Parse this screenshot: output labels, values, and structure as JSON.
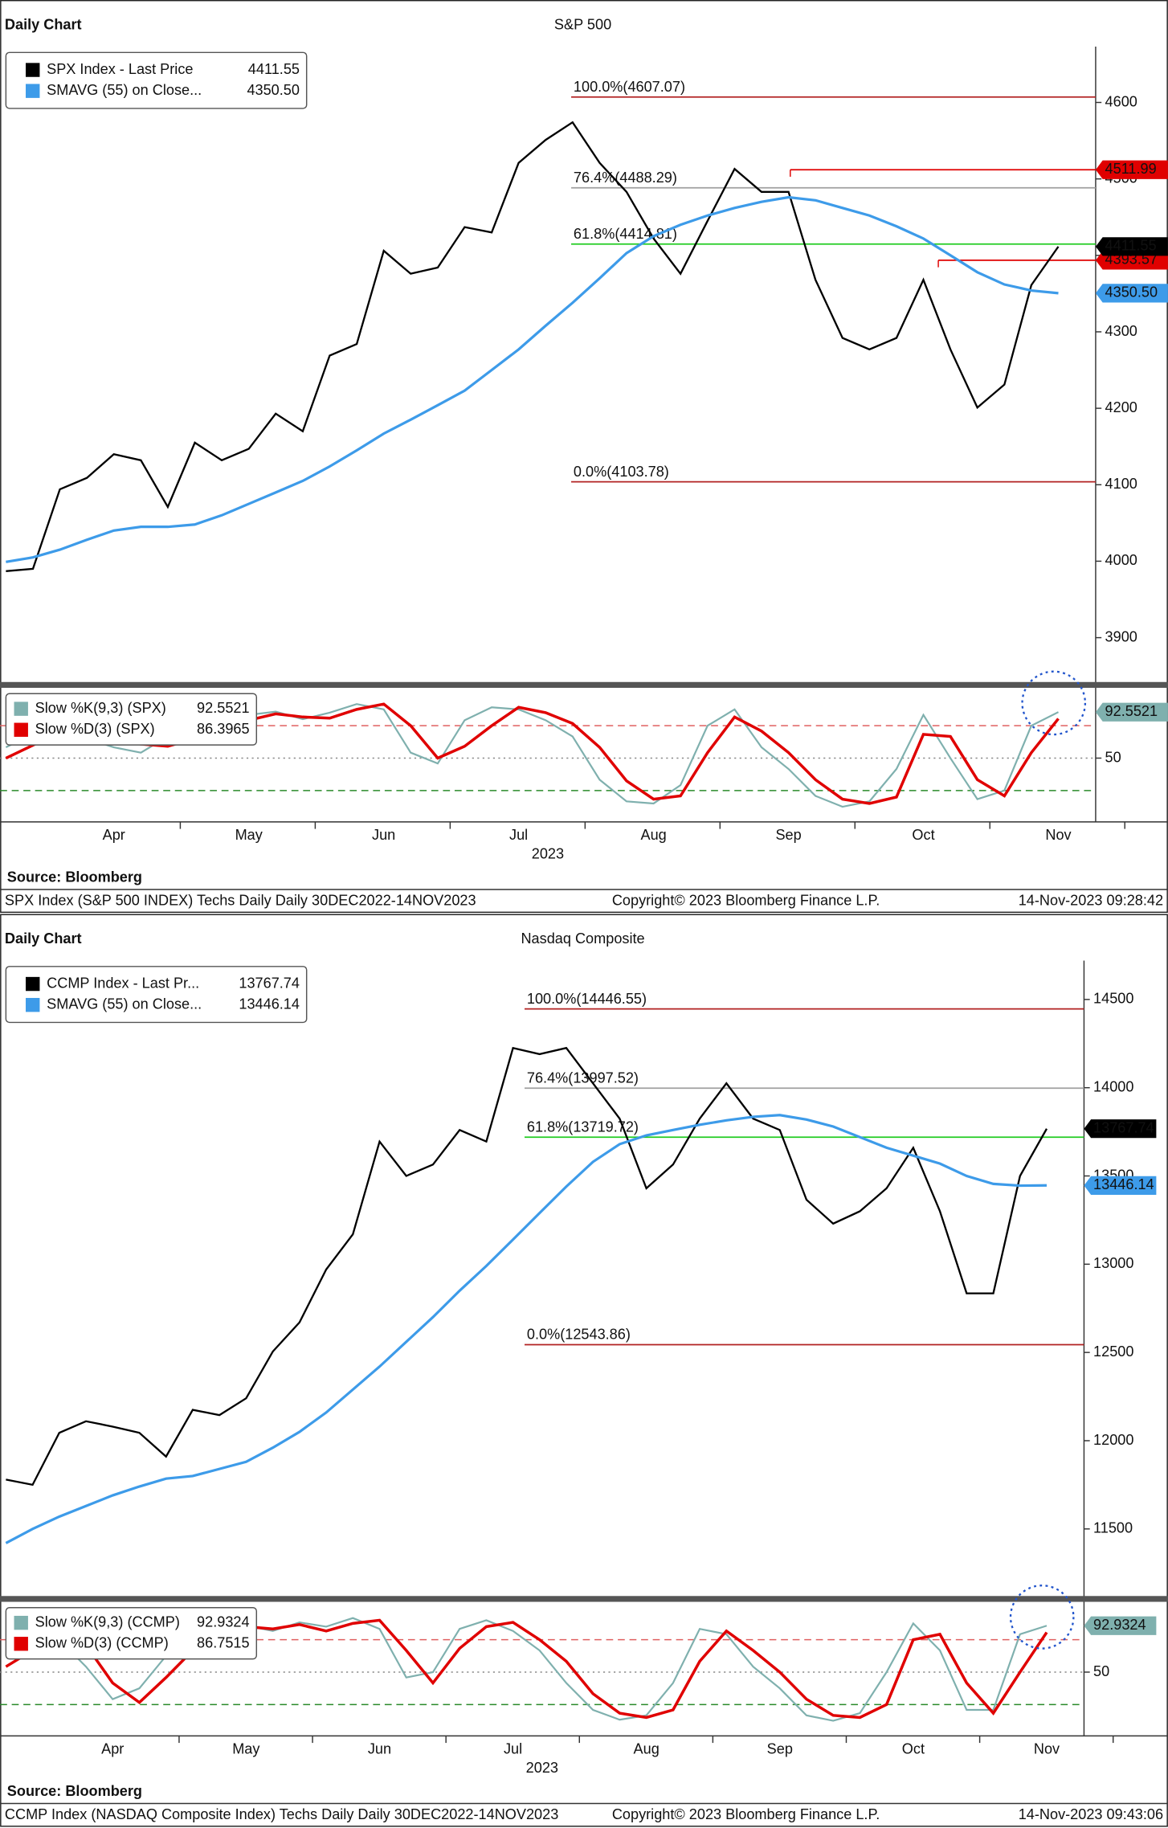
{
  "chart_data": [
    {
      "type": "line",
      "header": "Daily Chart",
      "title": "S&P 500",
      "categories": [
        null,
        null,
        null,
        null,
        "Apr",
        null,
        null,
        null,
        null,
        "May",
        null,
        null,
        null,
        null,
        "Jun",
        null,
        null,
        null,
        null,
        "Jul",
        null,
        null,
        null,
        null,
        "Aug",
        null,
        null,
        null,
        null,
        "Sep",
        null,
        null,
        null,
        null,
        "Oct",
        null,
        null,
        null,
        null,
        "Nov"
      ],
      "x_label": "2023",
      "ylim": [
        3842,
        4673
      ],
      "yticks": [
        3900,
        4000,
        4100,
        4200,
        4300,
        4400,
        4500,
        4600
      ],
      "series": [
        {
          "name": "SPX Index - Last Price",
          "color": "#000000",
          "last_label": "4411.55",
          "values": [
            3987,
            3990,
            4094,
            4109,
            4140,
            4132,
            4071,
            4155,
            4132,
            4147,
            4193,
            4170,
            4269,
            4284,
            4406,
            4376,
            4384,
            4437,
            4430,
            4521,
            4551,
            4574,
            4521,
            4483,
            4422,
            4376,
            4445,
            4513,
            4483,
            4483,
            4368,
            4292,
            4277,
            4292,
            4368,
            4277,
            4201,
            4231,
            4361,
            4411.55
          ]
        },
        {
          "name": "SMAVG (55)  on Close...",
          "color": "#3d9be9",
          "last_label": "4350.50",
          "values": [
            3999,
            4005,
            4015,
            4028,
            4040,
            4045,
            4045,
            4048,
            4060,
            4075,
            4090,
            4105,
            4124,
            4145,
            4167,
            4185,
            4204,
            4223,
            4250,
            4277,
            4308,
            4338,
            4370,
            4403,
            4425,
            4440,
            4452,
            4462,
            4470,
            4476,
            4472,
            4462,
            4452,
            4438,
            4422,
            4400,
            4378,
            4362,
            4354,
            4350.5
          ]
        }
      ],
      "levels": [
        {
          "label": "100.0%(4607.07)",
          "value": 4607.07,
          "color": "#b22222"
        },
        {
          "label": "76.4%(4488.29)",
          "value": 4488.29,
          "color": "#a0a0a0"
        },
        {
          "label": "61.8%(4414.81)",
          "value": 4414.81,
          "color": "#22cc22"
        },
        {
          "label": "0.0%(4103.78)",
          "value": 4103.78,
          "color": "#b22222"
        }
      ],
      "markers": [
        {
          "label": "4511.99",
          "value": 4511.99,
          "color": "#e00000"
        },
        {
          "label": "4393.57",
          "value": 4393.57,
          "color": "#e00000"
        }
      ],
      "stochastic": {
        "ylim": [
          -9,
          115
        ],
        "yticks": [
          50
        ],
        "levels": [
          {
            "value": 80,
            "color": "#e06060",
            "style": "dashed"
          },
          {
            "value": 50,
            "color": "#888888",
            "style": "dotted"
          },
          {
            "value": 20,
            "color": "#2a8a2a",
            "style": "dashed"
          }
        ],
        "series": [
          {
            "name": "Slow %K(9,3) (SPX)",
            "color": "#7fb0ae",
            "values": [
              60,
              72,
              78,
              68,
              60,
              55,
              70,
              80,
              85,
              90,
              93,
              86,
              92,
              100,
              95,
              55,
              45,
              85,
              97,
              95,
              85,
              70,
              30,
              10,
              8,
              25,
              80,
              95,
              60,
              40,
              15,
              5,
              10,
              40,
              90,
              50,
              12,
              20,
              80,
              92.5521
            ]
          },
          {
            "name": "Slow %D(3) (SPX)",
            "color": "#e00000",
            "values": [
              50,
              62,
              74,
              72,
              66,
              63,
              61,
              68,
              77,
              85,
              91,
              88,
              87,
              95,
              100,
              80,
              50,
              61,
              80,
              97,
              92,
              82,
              60,
              29,
              12,
              15,
              55,
              88,
              75,
              55,
              30,
              12,
              8,
              14,
              72,
              70,
              30,
              15,
              55,
              86.3965
            ]
          }
        ]
      },
      "source": "Source: Bloomberg",
      "footer": [
        "SPX Index (S&P 500 INDEX) Techs Daily  Daily 30DEC2022-14NOV2023",
        "Copyright© 2023 Bloomberg Finance L.P.",
        "14-Nov-2023 09:28:42"
      ]
    },
    {
      "type": "line",
      "header": "Daily Chart",
      "title": "Nasdaq Composite",
      "categories": [
        null,
        null,
        null,
        null,
        "Apr",
        null,
        null,
        null,
        null,
        "May",
        null,
        null,
        null,
        null,
        "Jun",
        null,
        null,
        null,
        null,
        "Jul",
        null,
        null,
        null,
        null,
        "Aug",
        null,
        null,
        null,
        null,
        "Sep",
        null,
        null,
        null,
        null,
        "Oct",
        null,
        null,
        null,
        null,
        "Nov"
      ],
      "x_label": "2023",
      "ylim": [
        11120,
        14720
      ],
      "yticks": [
        11500,
        12000,
        12500,
        13000,
        13500,
        14000,
        14500
      ],
      "series": [
        {
          "name": "CCMP Index - Last Pr...",
          "color": "#000000",
          "last_label": "13767.74",
          "values": [
            11780,
            11750,
            12045,
            12110,
            12080,
            12045,
            11910,
            12175,
            12145,
            12240,
            12505,
            12670,
            12970,
            13170,
            13695,
            13500,
            13565,
            13760,
            13695,
            14225,
            14190,
            14225,
            14025,
            13825,
            13430,
            13565,
            13825,
            14025,
            13825,
            13760,
            13365,
            13230,
            13300,
            13430,
            13660,
            13300,
            12835,
            12835,
            13500,
            13767.74
          ]
        },
        {
          "name": "SMAVG (55)  on Close...",
          "color": "#3d9be9",
          "last_label": "13446.14",
          "values": [
            11420,
            11500,
            11570,
            11630,
            11690,
            11740,
            11785,
            11800,
            11840,
            11880,
            11960,
            12050,
            12160,
            12290,
            12420,
            12560,
            12700,
            12850,
            12990,
            13140,
            13290,
            13440,
            13580,
            13680,
            13730,
            13760,
            13790,
            13815,
            13835,
            13845,
            13820,
            13780,
            13720,
            13660,
            13615,
            13570,
            13500,
            13455,
            13445,
            13446.14
          ]
        }
      ],
      "levels": [
        {
          "label": "100.0%(14446.55)",
          "value": 14446.55,
          "color": "#b22222"
        },
        {
          "label": "76.4%(13997.52)",
          "value": 13997.52,
          "color": "#a0a0a0"
        },
        {
          "label": "61.8%(13719.72)",
          "value": 13719.72,
          "color": "#22cc22"
        },
        {
          "label": "0.0%(12543.86)",
          "value": 12543.86,
          "color": "#b22222"
        }
      ],
      "markers": [],
      "stochastic": {
        "ylim": [
          -9,
          115
        ],
        "yticks": [
          50
        ],
        "levels": [
          {
            "value": 80,
            "color": "#e06060",
            "style": "dashed"
          },
          {
            "value": 50,
            "color": "#888888",
            "style": "dotted"
          },
          {
            "value": 20,
            "color": "#2a8a2a",
            "style": "dashed"
          }
        ],
        "series": [
          {
            "name": "Slow %K(9,3) (CCMP)",
            "color": "#7fb0ae",
            "values": [
              65,
              80,
              80,
              55,
              25,
              35,
              65,
              85,
              90,
              93,
              88,
              96,
              92,
              100,
              90,
              45,
              50,
              90,
              98,
              88,
              70,
              40,
              15,
              6,
              10,
              40,
              90,
              85,
              55,
              35,
              10,
              5,
              12,
              50,
              95,
              70,
              15,
              15,
              85,
              92.9324
            ]
          },
          {
            "name": "Slow %D(3) (CCMP)",
            "color": "#e00000",
            "values": [
              55,
              70,
              85,
              75,
              40,
              22,
              45,
              70,
              85,
              92,
              90,
              94,
              88,
              95,
              98,
              70,
              40,
              72,
              92,
              96,
              80,
              60,
              30,
              12,
              8,
              15,
              60,
              88,
              70,
              50,
              25,
              10,
              8,
              20,
              80,
              85,
              40,
              12,
              50,
              86.7515
            ]
          }
        ]
      },
      "source": "Source: Bloomberg",
      "footer": [
        "CCMP Index (NASDAQ Composite Index) Techs Daily  Daily 30DEC2022-14NOV2023",
        "Copyright© 2023 Bloomberg Finance L.P.",
        "14-Nov-2023 09:43:06"
      ]
    }
  ]
}
